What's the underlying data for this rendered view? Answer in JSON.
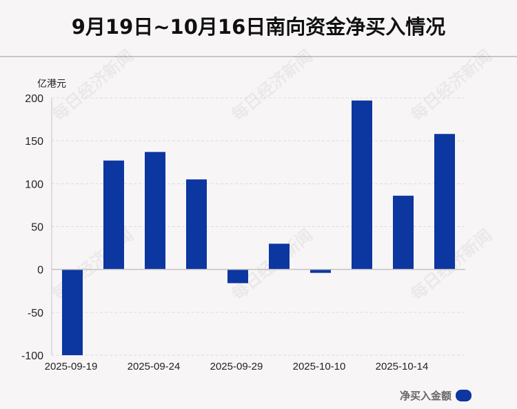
{
  "title": "9月19日~10月16日南向资金净买入情况",
  "colors": {
    "bar": "#0c36a0",
    "grid": "#dedbdd",
    "axis": "#c4c1c3"
  },
  "chart_data": {
    "type": "bar",
    "title": "9月19日~10月16日南向资金净买入情况",
    "unit_label": "亿港元",
    "ylim": [
      -100,
      200
    ],
    "yticks": [
      200,
      150,
      100,
      50,
      0,
      -50,
      -100
    ],
    "x_tick_labels": [
      "2025-09-19",
      "2025-09-24",
      "2025-09-29",
      "2025-10-10",
      "2025-10-14"
    ],
    "x_tick_label_indices": [
      0,
      2,
      4,
      6,
      8
    ],
    "series": [
      {
        "name": "净买入金额",
        "values": [
          -100,
          127,
          137,
          105,
          -16,
          30,
          -4,
          197,
          86,
          158
        ]
      }
    ],
    "grid": true,
    "legend": "bottom-right"
  },
  "watermark": "每日经济新闻"
}
